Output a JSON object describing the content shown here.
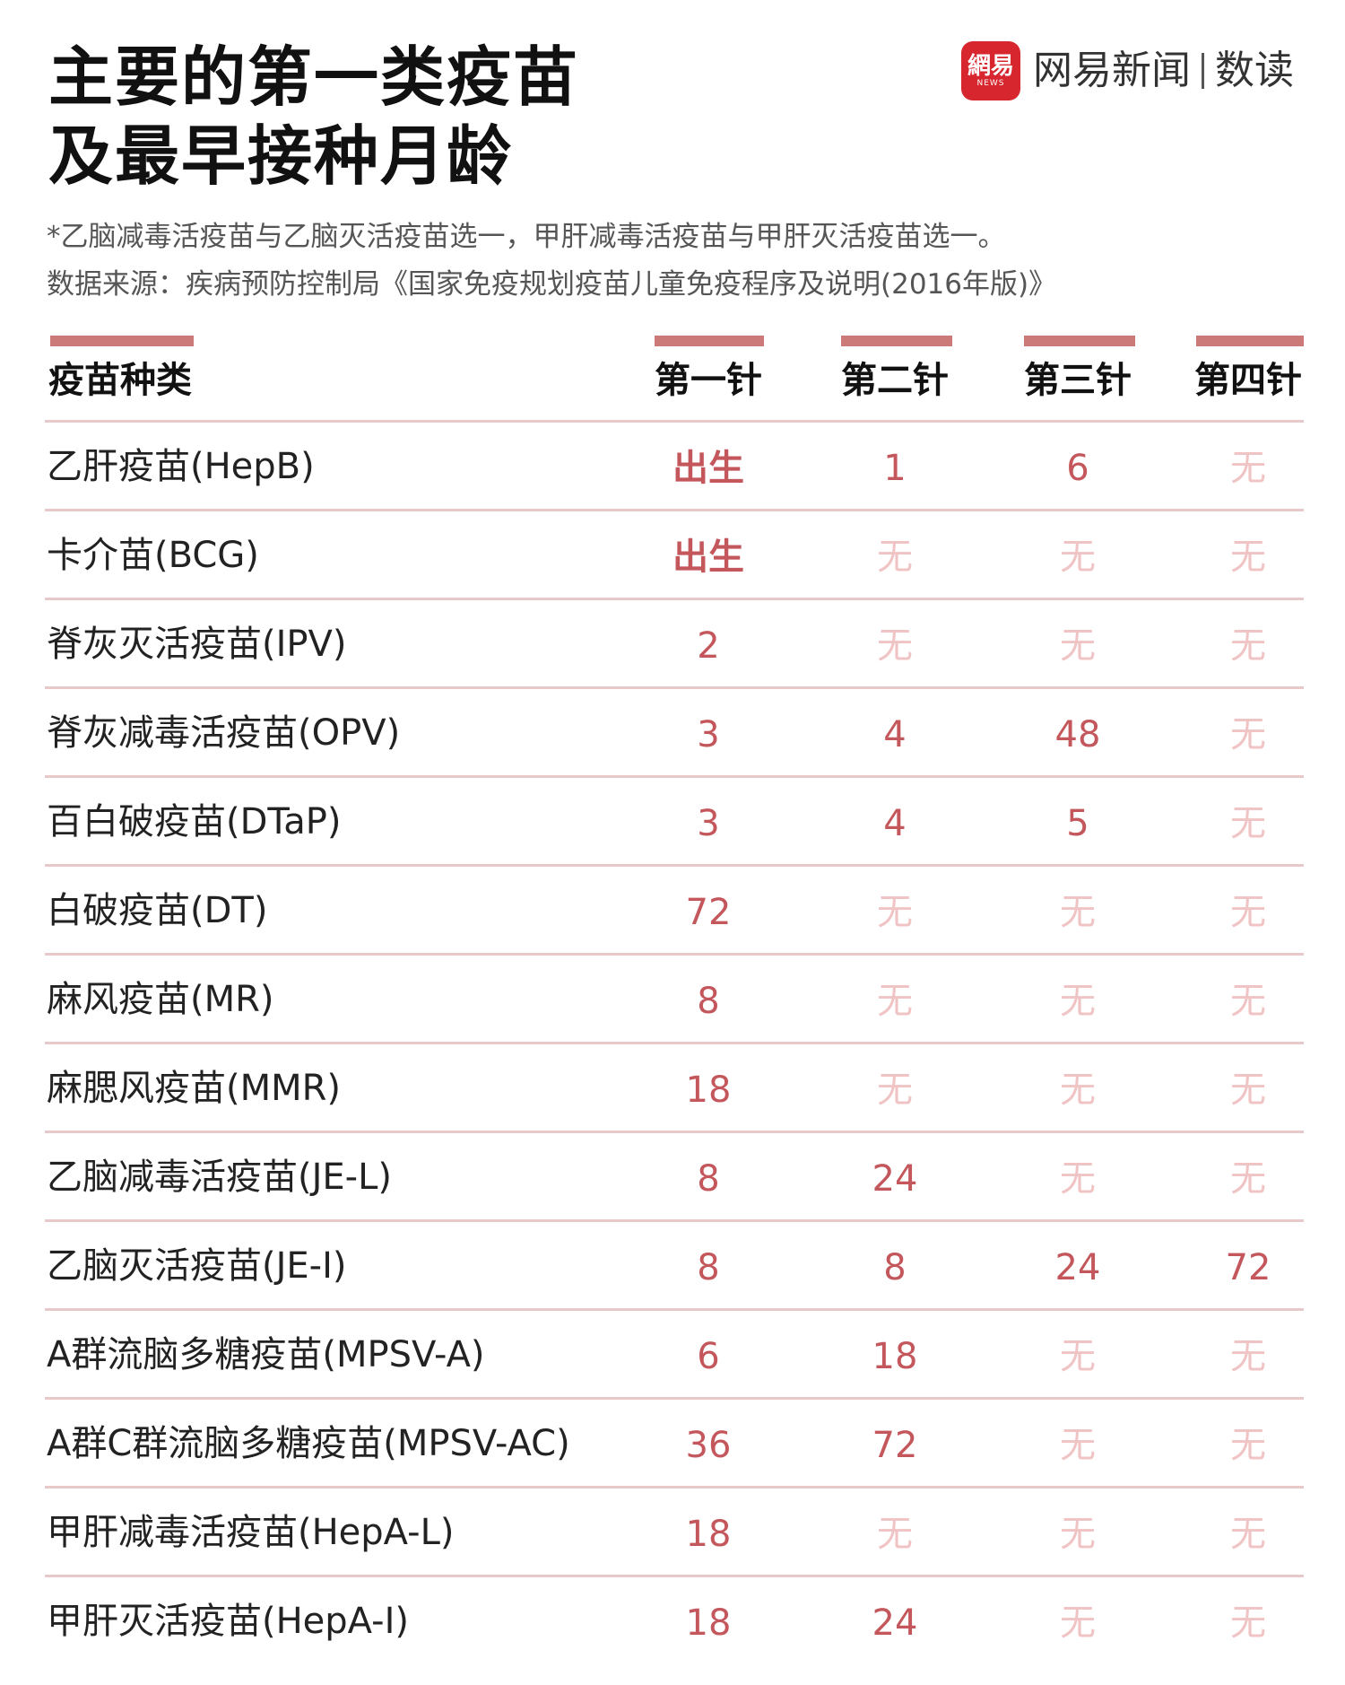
{
  "header": {
    "title_lines": [
      "主要的第一类疫苗",
      "及最早接种月龄"
    ],
    "logo": {
      "badge_text": "網易",
      "badge_sub": "NEWS",
      "brand": "网易新闻",
      "section": "数读"
    },
    "note": "*乙脑减毒活疫苗与乙脑灭活疫苗选一，甲肝减毒活疫苗与甲肝灭活疫苗选一。",
    "source": "数据来源：疾病预防控制局《国家免疫规划疫苗儿童免疫程序及说明(2016年版)》"
  },
  "colors": {
    "accent": "#cc7a79",
    "value": "#c4575c",
    "none": "#f0c4c4",
    "divider": "#e8c9c9"
  },
  "chart_data": {
    "type": "table",
    "columns": [
      "疫苗种类",
      "第一针",
      "第二针",
      "第三针",
      "第四针"
    ],
    "rows": [
      [
        "乙肝疫苗(HepB)",
        "出生",
        "1",
        "6",
        "无"
      ],
      [
        "卡介苗(BCG)",
        "出生",
        "无",
        "无",
        "无"
      ],
      [
        "脊灰灭活疫苗(IPV)",
        "2",
        "无",
        "无",
        "无"
      ],
      [
        "脊灰减毒活疫苗(OPV)",
        "3",
        "4",
        "48",
        "无"
      ],
      [
        "百白破疫苗(DTaP)",
        "3",
        "4",
        "5",
        "无"
      ],
      [
        "白破疫苗(DT)",
        "72",
        "无",
        "无",
        "无"
      ],
      [
        "麻风疫苗(MR)",
        "8",
        "无",
        "无",
        "无"
      ],
      [
        "麻腮风疫苗(MMR)",
        "18",
        "无",
        "无",
        "无"
      ],
      [
        "乙脑减毒活疫苗(JE-L)",
        "8",
        "24",
        "无",
        "无"
      ],
      [
        "乙脑灭活疫苗(JE-I)",
        "8",
        "8",
        "24",
        "72"
      ],
      [
        "A群流脑多糖疫苗(MPSV-A)",
        "6",
        "18",
        "无",
        "无"
      ],
      [
        "A群C群流脑多糖疫苗(MPSV-AC)",
        "36",
        "72",
        "无",
        "无"
      ],
      [
        "甲肝减毒活疫苗(HepA-L)",
        "18",
        "无",
        "无",
        "无"
      ],
      [
        "甲肝灭活疫苗(HepA-I)",
        "18",
        "24",
        "无",
        "无"
      ]
    ]
  }
}
